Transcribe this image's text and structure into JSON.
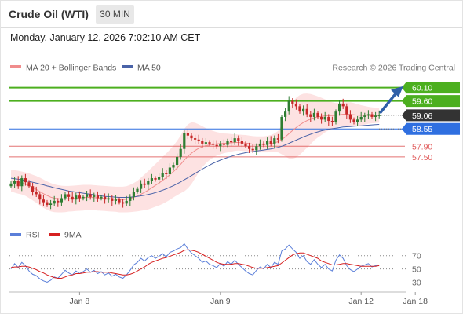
{
  "header": {
    "title": "Crude Oil (WTI)",
    "interval": "30 MIN",
    "timestamp": "Monday, January 12, 2026 7:02:10 AM CET"
  },
  "legend": {
    "ma20_bb": "MA 20 + Bollinger Bands",
    "ma50": "MA 50",
    "credit": "Research © 2026 Trading Central"
  },
  "rsi_legend": {
    "rsi": "RSI",
    "ma9": "9MA"
  },
  "colors": {
    "bull": "#2e7d32",
    "bear": "#c62828",
    "ma20": "#f08c8c",
    "band_fill": "#fde2e2",
    "ma50": "#4a63a8",
    "resistance": "#4caf1f",
    "support_blue": "#2f6fe0",
    "support_red": "#e05a5a",
    "last_price": "#333333",
    "rsi": "#5b7fd9",
    "rsi_ma": "#d62020",
    "arrow": "#2f5fa8"
  },
  "chart_data": [
    {
      "type": "candlestick",
      "y_range": [
        55.2,
        60.5
      ],
      "x_tick_labels": [
        {
          "label": "Jan 8",
          "index": 19
        },
        {
          "label": "Jan 9",
          "index": 58
        },
        {
          "label": "Jan 12",
          "index": 97
        },
        {
          "label": "Jan 18",
          "index": 112
        }
      ],
      "levels": [
        {
          "value": 60.1,
          "label": "60.10",
          "kind": "resistance"
        },
        {
          "value": 59.6,
          "label": "59.60",
          "kind": "resistance"
        },
        {
          "value": 59.06,
          "label": "59.06",
          "kind": "last"
        },
        {
          "value": 58.55,
          "label": "58.55",
          "kind": "pivot"
        },
        {
          "value": 57.9,
          "label": "57.90",
          "kind": "support"
        },
        {
          "value": 57.5,
          "label": "57.50",
          "kind": "support"
        }
      ],
      "close": [
        56.5,
        56.6,
        56.4,
        56.7,
        56.55,
        56.4,
        56.2,
        56.1,
        55.9,
        55.8,
        55.7,
        55.75,
        55.85,
        55.8,
        55.95,
        56.1,
        56.0,
        55.9,
        56.05,
        55.95,
        56.0,
        56.1,
        56.0,
        56.05,
        55.95,
        56.0,
        55.9,
        55.95,
        55.85,
        55.9,
        55.8,
        55.75,
        55.85,
        56.0,
        56.2,
        56.3,
        56.5,
        56.45,
        56.6,
        56.7,
        56.65,
        56.75,
        56.9,
        56.85,
        57.1,
        57.2,
        57.5,
        57.8,
        58.4,
        58.3,
        58.2,
        58.15,
        58.1,
        58.0,
        58.05,
        58.0,
        57.95,
        57.9,
        58.0,
        57.95,
        58.1,
        58.05,
        58.2,
        58.1,
        58.0,
        57.9,
        57.8,
        57.75,
        57.9,
        58.0,
        57.95,
        58.1,
        58.0,
        58.2,
        58.15,
        59.0,
        59.2,
        59.6,
        59.5,
        59.4,
        59.2,
        59.3,
        59.1,
        59.0,
        59.15,
        59.0,
        58.9,
        59.0,
        58.85,
        58.8,
        59.2,
        59.5,
        59.4,
        59.1,
        58.9,
        58.8,
        58.9,
        59.0,
        59.05,
        59.1,
        59.0,
        59.05,
        59.06
      ],
      "ma20": [
        56.6,
        56.58,
        56.55,
        56.52,
        56.48,
        56.42,
        56.35,
        56.28,
        56.2,
        56.12,
        56.05,
        55.99,
        55.95,
        55.93,
        55.92,
        55.92,
        55.93,
        55.94,
        55.95,
        55.96,
        55.97,
        55.98,
        55.98,
        55.97,
        55.96,
        55.95,
        55.94,
        55.93,
        55.92,
        55.91,
        55.9,
        55.9,
        55.91,
        55.94,
        55.98,
        56.03,
        56.1,
        56.17,
        56.25,
        56.34,
        56.43,
        56.52,
        56.62,
        56.72,
        56.83,
        56.95,
        57.08,
        57.22,
        57.38,
        57.52,
        57.64,
        57.74,
        57.82,
        57.88,
        57.92,
        57.95,
        57.97,
        57.99,
        58.0,
        58.01,
        58.02,
        58.03,
        58.04,
        58.04,
        58.03,
        58.02,
        58.0,
        57.98,
        57.97,
        57.97,
        57.97,
        57.98,
        58.0,
        58.03,
        58.07,
        58.15,
        58.25,
        58.37,
        58.49,
        58.6,
        58.7,
        58.79,
        58.86,
        58.92,
        58.97,
        59.0,
        59.02,
        59.04,
        59.05,
        59.05,
        59.06,
        59.08,
        59.1,
        59.1,
        59.09,
        59.08,
        59.07,
        59.06,
        59.06,
        59.06,
        59.06,
        59.06,
        59.06
      ],
      "ma50": [
        56.7,
        56.68,
        56.66,
        56.64,
        56.61,
        56.58,
        56.55,
        56.52,
        56.48,
        56.45,
        56.41,
        56.38,
        56.34,
        56.31,
        56.28,
        56.25,
        56.22,
        56.2,
        56.18,
        56.16,
        56.14,
        56.12,
        56.1,
        56.08,
        56.06,
        56.04,
        56.02,
        56.01,
        56.0,
        55.99,
        55.98,
        55.98,
        55.98,
        55.99,
        56.0,
        56.02,
        56.04,
        56.06,
        56.09,
        56.12,
        56.16,
        56.2,
        56.25,
        56.3,
        56.36,
        56.42,
        56.49,
        56.56,
        56.64,
        56.72,
        56.8,
        56.88,
        56.96,
        57.04,
        57.12,
        57.19,
        57.26,
        57.32,
        57.38,
        57.43,
        57.48,
        57.52,
        57.56,
        57.6,
        57.63,
        57.66,
        57.68,
        57.7,
        57.72,
        57.74,
        57.76,
        57.78,
        57.8,
        57.83,
        57.86,
        57.9,
        57.95,
        58.01,
        58.07,
        58.13,
        58.19,
        58.25,
        58.3,
        58.35,
        58.4,
        58.44,
        58.48,
        58.51,
        58.54,
        58.56,
        58.58,
        58.6,
        58.62,
        58.63,
        58.64,
        58.65,
        58.66,
        58.67,
        58.68,
        58.69,
        58.7,
        58.71,
        58.72
      ],
      "bb_upper": [
        57.0,
        57.0,
        56.98,
        56.95,
        56.92,
        56.88,
        56.83,
        56.78,
        56.72,
        56.65,
        56.58,
        56.52,
        56.47,
        56.44,
        56.42,
        56.41,
        56.41,
        56.42,
        56.43,
        56.44,
        56.45,
        56.45,
        56.45,
        56.44,
        56.43,
        56.42,
        56.41,
        56.4,
        56.39,
        56.38,
        56.38,
        56.38,
        56.4,
        56.45,
        56.52,
        56.6,
        56.72,
        56.84,
        56.97,
        57.1,
        57.23,
        57.36,
        57.5,
        57.63,
        57.77,
        57.92,
        58.1,
        58.3,
        58.55,
        58.72,
        58.8,
        58.78,
        58.72,
        58.65,
        58.58,
        58.52,
        58.47,
        58.43,
        58.4,
        58.38,
        58.37,
        58.36,
        58.35,
        58.34,
        58.33,
        58.32,
        58.3,
        58.28,
        58.27,
        58.27,
        58.27,
        58.29,
        58.32,
        58.38,
        58.47,
        58.7,
        58.98,
        59.3,
        59.55,
        59.72,
        59.82,
        59.87,
        59.88,
        59.86,
        59.82,
        59.77,
        59.72,
        59.66,
        59.6,
        59.55,
        59.52,
        59.52,
        59.54,
        59.55,
        59.55,
        59.52,
        59.48,
        59.44,
        59.41,
        59.38,
        59.36,
        59.35,
        59.34
      ],
      "bb_lower": [
        56.2,
        56.16,
        56.12,
        56.09,
        56.04,
        55.96,
        55.87,
        55.78,
        55.68,
        55.59,
        55.52,
        55.46,
        55.43,
        55.42,
        55.42,
        55.43,
        55.45,
        55.46,
        55.47,
        55.48,
        55.49,
        55.51,
        55.51,
        55.5,
        55.49,
        55.48,
        55.47,
        55.46,
        55.45,
        55.44,
        55.42,
        55.42,
        55.42,
        55.43,
        55.44,
        55.46,
        55.48,
        55.5,
        55.53,
        55.58,
        55.63,
        55.68,
        55.74,
        55.81,
        55.89,
        55.98,
        56.06,
        56.14,
        56.21,
        56.32,
        56.48,
        56.7,
        56.92,
        57.11,
        57.26,
        57.38,
        57.47,
        57.55,
        57.6,
        57.64,
        57.67,
        57.7,
        57.73,
        57.74,
        57.73,
        57.72,
        57.7,
        57.68,
        57.67,
        57.67,
        57.67,
        57.67,
        57.68,
        57.68,
        57.67,
        57.6,
        57.52,
        57.44,
        57.43,
        57.48,
        57.58,
        57.71,
        57.84,
        57.98,
        58.12,
        58.23,
        58.32,
        58.42,
        58.5,
        58.55,
        58.6,
        58.64,
        58.66,
        58.65,
        58.63,
        58.64,
        58.66,
        58.68,
        58.71,
        58.74,
        58.76,
        58.77,
        58.78
      ]
    },
    {
      "type": "line",
      "y_range": [
        20,
        85
      ],
      "y_ticks": [
        70,
        50,
        30
      ],
      "series": [
        {
          "name": "RSI",
          "values": [
            50,
            58,
            52,
            60,
            55,
            47,
            42,
            40,
            35,
            32,
            30,
            33,
            38,
            36,
            42,
            48,
            44,
            41,
            47,
            43,
            46,
            50,
            45,
            48,
            43,
            46,
            41,
            44,
            39,
            42,
            38,
            36,
            41,
            48,
            56,
            60,
            66,
            62,
            67,
            70,
            66,
            69,
            73,
            68,
            75,
            77,
            80,
            82,
            88,
            80,
            74,
            70,
            66,
            60,
            62,
            57,
            55,
            52,
            58,
            54,
            61,
            57,
            63,
            57,
            52,
            47,
            43,
            41,
            48,
            53,
            50,
            57,
            52,
            60,
            57,
            77,
            80,
            86,
            80,
            75,
            66,
            70,
            61,
            57,
            64,
            57,
            52,
            57,
            50,
            47,
            63,
            71,
            66,
            55,
            49,
            46,
            50,
            54,
            56,
            58,
            53,
            55,
            56
          ]
        },
        {
          "name": "9MA",
          "values": [
            52,
            53,
            53,
            54,
            54,
            53,
            51,
            49,
            46,
            44,
            41,
            39,
            37,
            36,
            36,
            38,
            40,
            41,
            43,
            43,
            44,
            45,
            45,
            46,
            46,
            45,
            45,
            45,
            44,
            43,
            42,
            41,
            41,
            42,
            44,
            47,
            50,
            53,
            57,
            60,
            62,
            64,
            66,
            67,
            69,
            71,
            73,
            75,
            78,
            79,
            78,
            77,
            75,
            72,
            69,
            66,
            63,
            60,
            58,
            57,
            57,
            57,
            58,
            58,
            57,
            56,
            54,
            52,
            51,
            51,
            51,
            52,
            53,
            54,
            55,
            59,
            63,
            67,
            71,
            73,
            74,
            74,
            72,
            70,
            68,
            66,
            62,
            60,
            58,
            56,
            56,
            57,
            58,
            58,
            57,
            56,
            55,
            54,
            54,
            54,
            54,
            54,
            55
          ]
        }
      ]
    }
  ]
}
